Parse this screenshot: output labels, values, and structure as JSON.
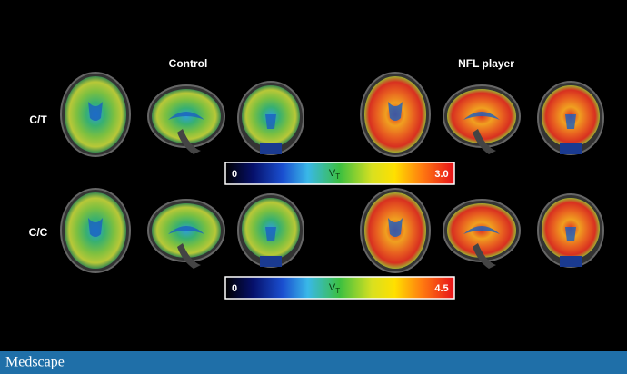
{
  "header": {
    "columns": [
      "Control",
      "NFL player"
    ]
  },
  "rows": [
    {
      "label": "C/T",
      "scale": {
        "min": "0",
        "symbol": "V",
        "subscript": "T",
        "max": "3.0"
      }
    },
    {
      "label": "C/C",
      "scale": {
        "min": "0",
        "symbol": "V",
        "subscript": "T",
        "max": "4.5"
      }
    }
  ],
  "footer": {
    "brand": "Medscape"
  }
}
